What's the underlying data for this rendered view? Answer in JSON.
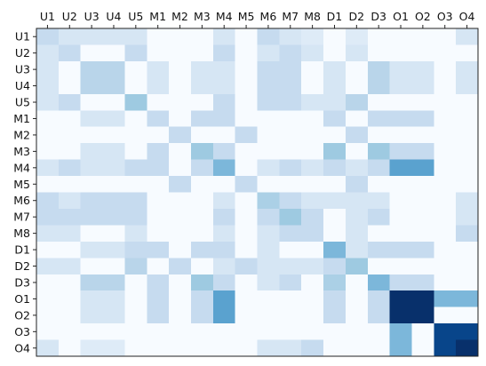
{
  "chart_data": {
    "type": "heatmap",
    "x_labels": [
      "U1",
      "U2",
      "U3",
      "U4",
      "U5",
      "M1",
      "M2",
      "M3",
      "M4",
      "M5",
      "M6",
      "M7",
      "M8",
      "D1",
      "D2",
      "D3",
      "O1",
      "O2",
      "O3",
      "O4"
    ],
    "y_labels": [
      "U1",
      "U2",
      "U3",
      "U4",
      "U5",
      "M1",
      "M2",
      "M3",
      "M4",
      "M5",
      "M6",
      "M7",
      "M8",
      "D1",
      "D2",
      "D3",
      "O1",
      "O2",
      "O3",
      "O4"
    ],
    "x_tick_position": "top",
    "colormap": "Blues",
    "value_range": [
      0,
      1
    ],
    "grid": false,
    "colorbar": false,
    "values": [
      [
        0.3,
        0.2,
        0.2,
        0.2,
        0.2,
        0,
        0,
        0,
        0.2,
        0,
        0.3,
        0.2,
        0.15,
        0,
        0.15,
        0,
        0,
        0,
        0,
        0.2
      ],
      [
        0.2,
        0.3,
        0,
        0,
        0.3,
        0,
        0,
        0,
        0.3,
        0,
        0.2,
        0.3,
        0.2,
        0,
        0.2,
        0,
        0,
        0,
        0,
        0
      ],
      [
        0.2,
        0,
        0.35,
        0.35,
        0,
        0.2,
        0,
        0.2,
        0.2,
        0,
        0.3,
        0.3,
        0,
        0.2,
        0,
        0.35,
        0.2,
        0.2,
        0,
        0.2
      ],
      [
        0.2,
        0,
        0.35,
        0.35,
        0,
        0.2,
        0,
        0.2,
        0.2,
        0,
        0.3,
        0.3,
        0,
        0.2,
        0,
        0.35,
        0.2,
        0.2,
        0,
        0.2
      ],
      [
        0.2,
        0.3,
        0,
        0,
        0.45,
        0,
        0,
        0,
        0.3,
        0,
        0.3,
        0.3,
        0.2,
        0.2,
        0.35,
        0,
        0,
        0,
        0,
        0
      ],
      [
        0,
        0,
        0.2,
        0.2,
        0,
        0.3,
        0,
        0.3,
        0.3,
        0,
        0,
        0,
        0,
        0.3,
        0,
        0.3,
        0.3,
        0.3,
        0,
        0
      ],
      [
        0,
        0,
        0,
        0,
        0,
        0,
        0.3,
        0,
        0,
        0.3,
        0,
        0,
        0,
        0,
        0.3,
        0,
        0,
        0,
        0,
        0
      ],
      [
        0,
        0,
        0.2,
        0.2,
        0,
        0.3,
        0,
        0.45,
        0.3,
        0,
        0,
        0,
        0,
        0.45,
        0,
        0.45,
        0.3,
        0.3,
        0,
        0
      ],
      [
        0.2,
        0.3,
        0.2,
        0.2,
        0.3,
        0.3,
        0,
        0.3,
        0.55,
        0,
        0.2,
        0.3,
        0.2,
        0.3,
        0.2,
        0.3,
        0.65,
        0.65,
        0,
        0
      ],
      [
        0,
        0,
        0,
        0,
        0,
        0,
        0.3,
        0,
        0,
        0.3,
        0,
        0,
        0,
        0,
        0.3,
        0,
        0,
        0,
        0,
        0
      ],
      [
        0.3,
        0.2,
        0.3,
        0.3,
        0.3,
        0,
        0,
        0,
        0.2,
        0,
        0.4,
        0.3,
        0.2,
        0.2,
        0.2,
        0.2,
        0,
        0,
        0,
        0.2
      ],
      [
        0.3,
        0.3,
        0.3,
        0.3,
        0.3,
        0,
        0,
        0,
        0.3,
        0,
        0.3,
        0.45,
        0.3,
        0,
        0.2,
        0.3,
        0,
        0,
        0,
        0.2
      ],
      [
        0.2,
        0.2,
        0,
        0,
        0.2,
        0,
        0,
        0,
        0.2,
        0,
        0.2,
        0.3,
        0.3,
        0,
        0.2,
        0,
        0,
        0,
        0,
        0.3
      ],
      [
        0,
        0,
        0.2,
        0.2,
        0.3,
        0.3,
        0,
        0.3,
        0.3,
        0,
        0.2,
        0,
        0,
        0.55,
        0.2,
        0.3,
        0.3,
        0.3,
        0,
        0
      ],
      [
        0.2,
        0.2,
        0,
        0,
        0.35,
        0,
        0.3,
        0,
        0.2,
        0.3,
        0.2,
        0.2,
        0.2,
        0.3,
        0.45,
        0,
        0,
        0,
        0,
        0
      ],
      [
        0,
        0,
        0.35,
        0.35,
        0,
        0.3,
        0,
        0.45,
        0.3,
        0,
        0.2,
        0.3,
        0,
        0.4,
        0,
        0.55,
        0.3,
        0.3,
        0,
        0
      ],
      [
        0,
        0,
        0.2,
        0.2,
        0,
        0.3,
        0,
        0.3,
        0.65,
        0,
        0,
        0,
        0,
        0.3,
        0,
        0.3,
        1.0,
        1.0,
        0.55,
        0.55
      ],
      [
        0,
        0,
        0.2,
        0.2,
        0,
        0.3,
        0,
        0.3,
        0.65,
        0,
        0,
        0,
        0,
        0.3,
        0,
        0.3,
        1.0,
        1.0,
        0,
        0
      ],
      [
        0,
        0,
        0,
        0,
        0,
        0,
        0,
        0,
        0,
        0,
        0,
        0,
        0,
        0,
        0,
        0,
        0.55,
        0,
        0.95,
        0.95
      ],
      [
        0.2,
        0,
        0.15,
        0.15,
        0,
        0,
        0,
        0,
        0,
        0,
        0.2,
        0.2,
        0.3,
        0,
        0,
        0,
        0.55,
        0,
        0.95,
        1.0
      ]
    ]
  }
}
